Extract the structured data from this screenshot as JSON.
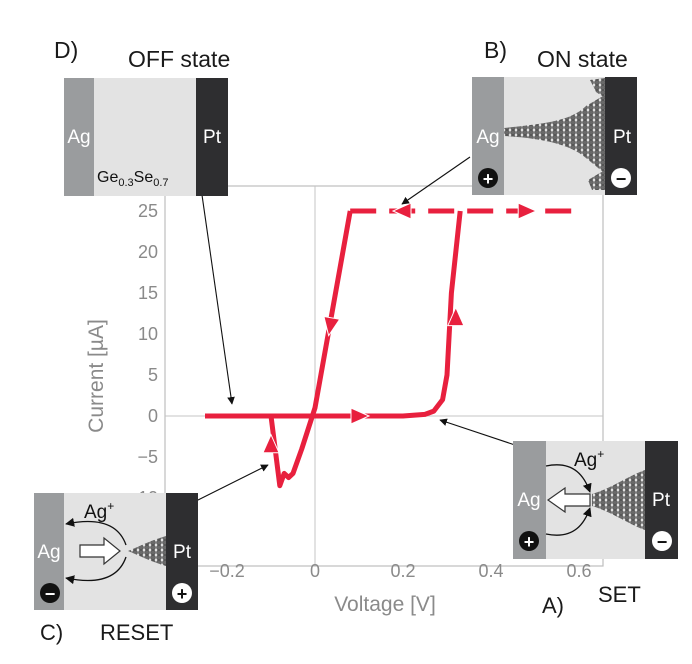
{
  "chart_data": {
    "type": "line",
    "xlabel": "Voltage [V]",
    "ylabel": "Current [µA]",
    "xlim": [
      -0.35,
      0.65
    ],
    "ylim": [
      -11,
      27
    ],
    "x_ticks": [
      "−0.2",
      "0",
      "0.2",
      "0.4",
      "0.6"
    ],
    "x_tick_values": [
      -0.2,
      0,
      0.2,
      0.4,
      0.6
    ],
    "y_ticks": [
      "25",
      "20",
      "15",
      "10",
      "5",
      "0",
      "−5",
      "−10"
    ],
    "y_tick_values": [
      25,
      20,
      15,
      10,
      5,
      0,
      -5,
      -10
    ],
    "grid": "zero-lines",
    "series": [
      {
        "style": "solid",
        "color": "#e8203e",
        "x": [
          -0.25,
          0.0,
          0.2,
          0.25,
          0.27,
          0.29,
          0.3,
          0.31,
          0.33
        ],
        "y": [
          0,
          0,
          0,
          0.2,
          0.6,
          2,
          5,
          15,
          25
        ]
      },
      {
        "style": "dashed",
        "color": "#e8203e",
        "x": [
          0.08,
          0.6
        ],
        "y": [
          25,
          25
        ]
      },
      {
        "style": "solid",
        "color": "#e8203e",
        "x": [
          0.08,
          0.0,
          -0.03,
          -0.05,
          -0.06,
          -0.07,
          -0.08,
          -0.1
        ],
        "y": [
          25,
          1,
          -4,
          -7,
          -7.5,
          -7,
          -8.5,
          0
        ]
      }
    ]
  },
  "panels": {
    "off": {
      "letter": "D)",
      "title": "OFF state",
      "left": "Ag",
      "right": "Pt",
      "formula": {
        "base1": "Ge",
        "sub1": "0.3",
        "base2": "Se",
        "sub2": "0.7"
      }
    },
    "on": {
      "letter": "B)",
      "title": "ON state",
      "left": "Ag",
      "right": "Pt",
      "left_sign": "+",
      "right_sign": "−"
    },
    "set": {
      "letter": "A)",
      "title": "SET",
      "left": "Ag",
      "right": "Pt",
      "ion_base": "Ag",
      "ion_charge": "+",
      "left_sign": "+",
      "right_sign": "−"
    },
    "reset": {
      "letter": "C)",
      "title": "RESET",
      "left": "Ag",
      "right": "Pt",
      "ion_base": "Ag",
      "ion_charge": "+",
      "left_sign": "−",
      "right_sign": "+"
    }
  },
  "colors": {
    "curve": "#e8203e",
    "axis_text": "#8a8a8a",
    "silver": "#9a9c9e",
    "electrolyte": "#e3e3e3",
    "platinum": "#2e2e30"
  }
}
